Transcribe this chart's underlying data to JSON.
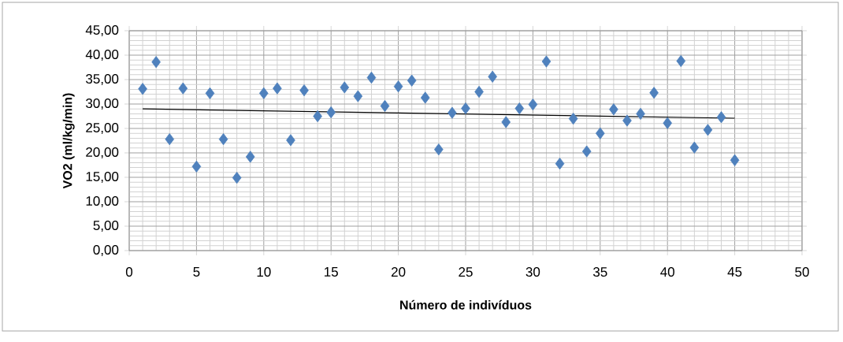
{
  "chart_data": {
    "type": "scatter",
    "xlabel": "Número de indivíduos",
    "ylabel": "VO2 (ml/kg/min)",
    "xlim": [
      0,
      50
    ],
    "xticks": [
      0,
      5,
      10,
      15,
      20,
      25,
      30,
      35,
      40,
      45,
      50
    ],
    "ylim": [
      0,
      45
    ],
    "yticks": [
      {
        "value": 0,
        "label": "0,00"
      },
      {
        "value": 5,
        "label": "5,00"
      },
      {
        "value": 10,
        "label": "10,00"
      },
      {
        "value": 15,
        "label": "15,00"
      },
      {
        "value": 20,
        "label": "20,00"
      },
      {
        "value": 25,
        "label": "25,00"
      },
      {
        "value": 30,
        "label": "30,00"
      },
      {
        "value": 35,
        "label": "35,00"
      },
      {
        "value": 40,
        "label": "40,00"
      },
      {
        "value": 45,
        "label": "45,00"
      }
    ],
    "grid": true,
    "legend": false,
    "series": [
      {
        "marker": "diamond",
        "color": "#4f81bd",
        "x": [
          1,
          2,
          3,
          4,
          5,
          6,
          7,
          8,
          9,
          10,
          11,
          12,
          13,
          14,
          15,
          16,
          17,
          18,
          19,
          20,
          21,
          22,
          23,
          24,
          25,
          26,
          27,
          28,
          29,
          30,
          31,
          32,
          33,
          34,
          35,
          36,
          37,
          38,
          39,
          40,
          41,
          42,
          43,
          44,
          45
        ],
        "values": [
          33.1,
          38.6,
          22.8,
          33.2,
          17.2,
          32.2,
          22.8,
          14.9,
          19.2,
          32.2,
          33.2,
          22.6,
          32.8,
          27.5,
          28.3,
          33.4,
          31.6,
          35.4,
          29.6,
          33.6,
          34.8,
          31.3,
          20.7,
          28.2,
          29.1,
          32.5,
          35.6,
          26.3,
          29.1,
          29.9,
          38.7,
          17.8,
          27.0,
          20.3,
          24.0,
          28.9,
          26.6,
          28.0,
          32.3,
          26.1,
          38.8,
          21.1,
          24.7,
          27.3,
          18.5
        ]
      },
      {
        "type": "line",
        "marker": "none",
        "color": "#000000",
        "x": [
          1,
          45
        ],
        "values": [
          29.0,
          27.1
        ]
      }
    ]
  }
}
